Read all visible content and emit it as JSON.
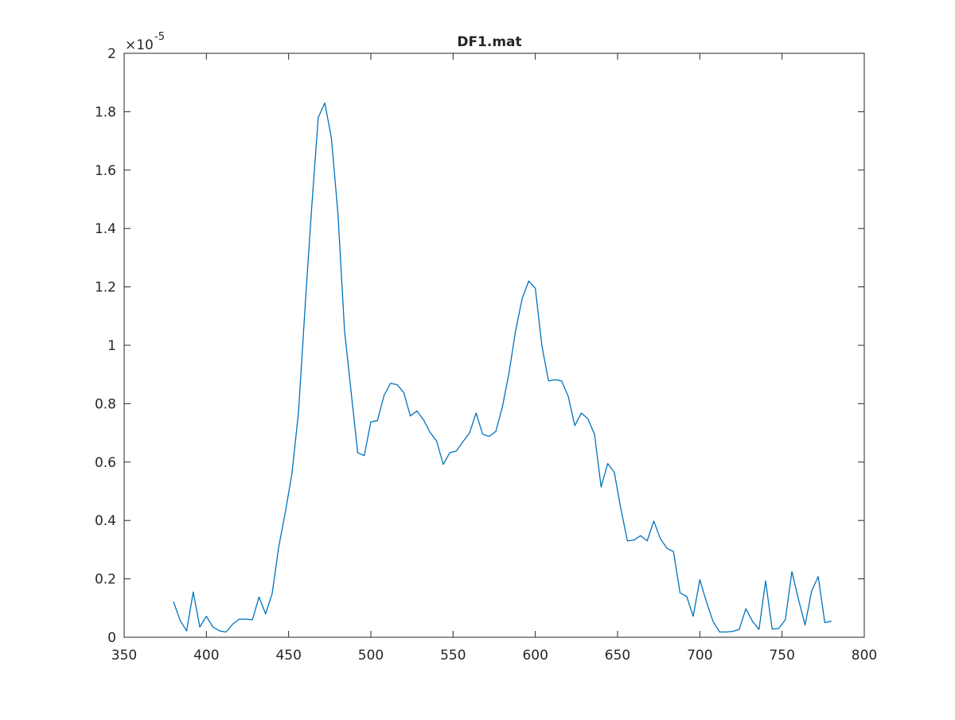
{
  "chart_data": {
    "type": "line",
    "title": "DF1.mat",
    "xlabel": "",
    "ylabel": "",
    "xlim": [
      350,
      800
    ],
    "ylim": [
      0,
      2
    ],
    "x_ticks": [
      "350",
      "400",
      "450",
      "500",
      "550",
      "600",
      "650",
      "700",
      "750",
      "800"
    ],
    "y_ticks": [
      "0",
      "0.2",
      "0.4",
      "0.6",
      "0.8",
      "1",
      "1.2",
      "1.4",
      "1.6",
      "1.8",
      "2"
    ],
    "y_exponent_base": "×10",
    "y_exponent_power": "-5",
    "grid": false,
    "box": true,
    "line_color": "#0072BD",
    "series": [
      {
        "x": [
          380,
          384,
          388,
          392,
          396,
          400,
          404,
          408,
          412,
          416,
          420,
          424,
          428,
          432,
          436,
          440,
          444,
          448,
          452,
          456,
          460,
          464,
          468,
          472,
          476,
          480,
          484,
          488,
          492,
          496,
          500,
          504,
          508,
          512,
          516,
          520,
          524,
          528,
          532,
          536,
          540,
          544,
          548,
          552,
          556,
          560,
          564,
          568,
          572,
          576,
          580,
          584,
          588,
          592,
          596,
          600,
          604,
          608,
          612,
          616,
          620,
          624,
          628,
          632,
          636,
          640,
          644,
          648,
          652,
          656,
          660,
          664,
          668,
          672,
          676,
          680,
          684,
          688,
          692,
          696,
          700,
          704,
          708,
          712,
          716,
          720,
          724,
          728,
          732,
          736,
          740,
          744,
          748,
          752,
          756,
          760,
          764,
          768,
          772,
          776,
          780
        ],
        "y": [
          0.122,
          0.058,
          0.022,
          0.155,
          0.035,
          0.072,
          0.035,
          0.022,
          0.018,
          0.045,
          0.062,
          0.062,
          0.06,
          0.138,
          0.08,
          0.15,
          0.31,
          0.428,
          0.56,
          0.77,
          1.13,
          1.47,
          1.78,
          1.83,
          1.71,
          1.45,
          1.05,
          0.84,
          0.632,
          0.622,
          0.738,
          0.742,
          0.828,
          0.87,
          0.865,
          0.838,
          0.758,
          0.775,
          0.745,
          0.702,
          0.672,
          0.592,
          0.632,
          0.638,
          0.67,
          0.7,
          0.768,
          0.695,
          0.688,
          0.705,
          0.79,
          0.905,
          1.05,
          1.16,
          1.22,
          1.195,
          0.998,
          0.878,
          0.882,
          0.878,
          0.825,
          0.725,
          0.768,
          0.748,
          0.695,
          0.515,
          0.595,
          0.565,
          0.44,
          0.33,
          0.333,
          0.348,
          0.33,
          0.398,
          0.338,
          0.305,
          0.293,
          0.152,
          0.14,
          0.072,
          0.197,
          0.122,
          0.055,
          0.018,
          0.018,
          0.02,
          0.027,
          0.098,
          0.055,
          0.027,
          0.193,
          0.028,
          0.03,
          0.06,
          0.225,
          0.13,
          0.042,
          0.158,
          0.208,
          0.05,
          0.055
        ]
      }
    ]
  }
}
